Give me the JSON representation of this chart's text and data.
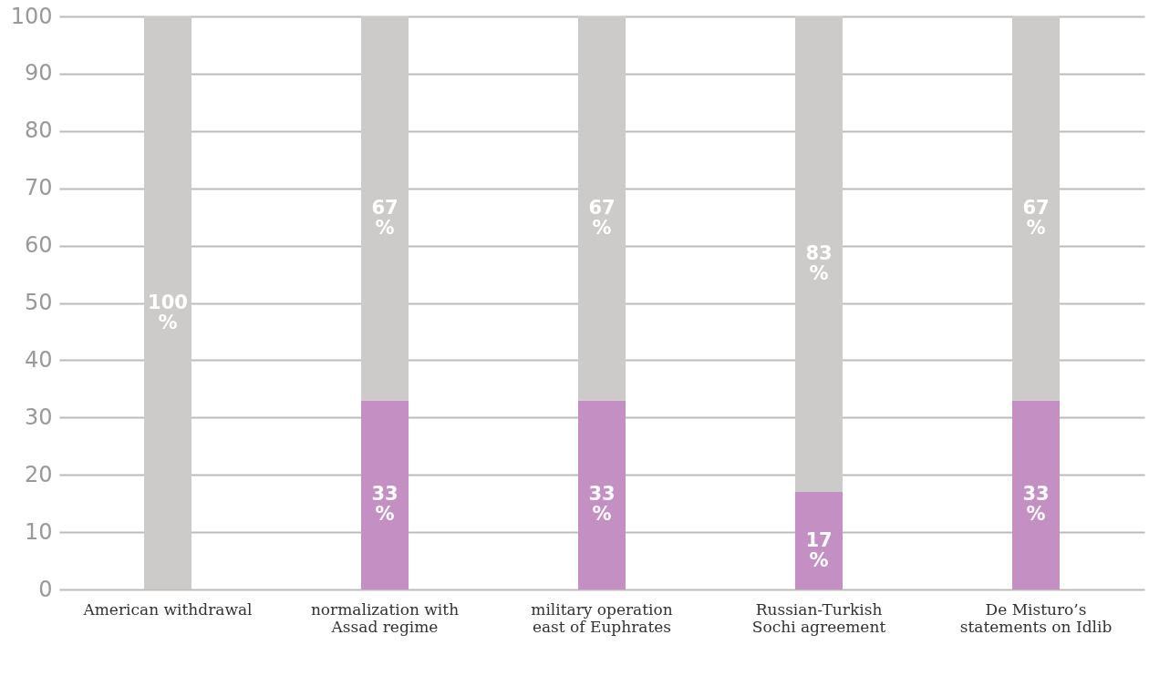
{
  "chart_data": {
    "type": "bar",
    "stacked": true,
    "categories": [
      "American withdrawal",
      "normalization with Assad regime",
      "military operation east of Euphrates",
      "Russian-Turkish Sochi agreement",
      "De Misturo’s statements on Idlib"
    ],
    "series": [
      {
        "color": "#c490c4",
        "values": [
          0,
          33,
          33,
          17,
          33
        ],
        "value_labels": [
          null,
          "33%",
          "33%",
          "17%",
          "33%"
        ]
      },
      {
        "color": "#cccbca",
        "values": [
          100,
          67,
          67,
          83,
          67
        ],
        "value_labels": [
          "100%",
          "67%",
          "67%",
          "83%",
          "67%"
        ]
      }
    ],
    "ylim": [
      0,
      100
    ],
    "yticks": [
      0,
      10,
      20,
      30,
      40,
      50,
      60,
      70,
      80,
      90,
      100
    ],
    "grid": "y",
    "legend": false
  }
}
